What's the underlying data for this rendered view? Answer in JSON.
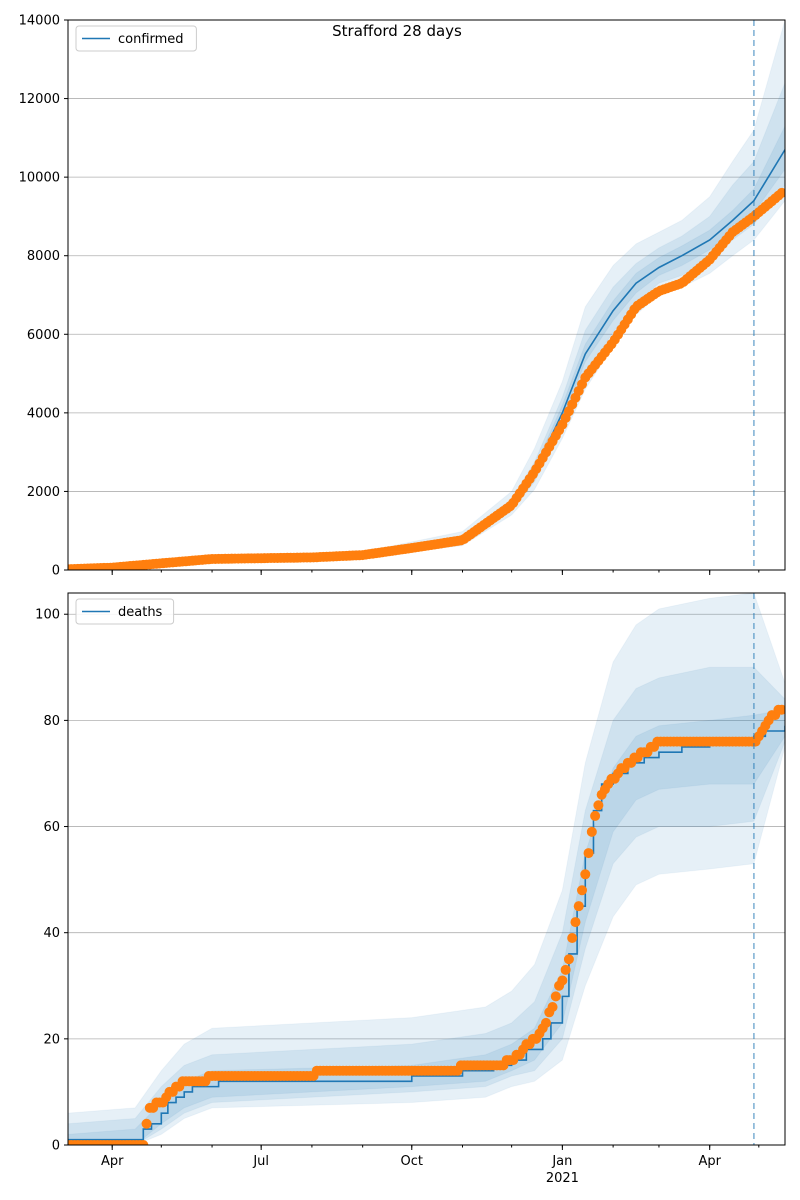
{
  "figure": {
    "title": "Strafford 28 days"
  },
  "colors": {
    "model_line": "#1f77b4",
    "observed_points": "#ff7f0e",
    "band": "#1f77b4",
    "grid": "#b0b0b0",
    "forecast_marker": "#1f77b4"
  },
  "x_axis": {
    "ticks": [
      {
        "date": "2020-04-01",
        "label": "Apr"
      },
      {
        "date": "2020-07-01",
        "label": "Jul"
      },
      {
        "date": "2020-10-01",
        "label": "Oct"
      },
      {
        "date": "2021-01-01",
        "label": "Jan",
        "sublabel": "2021"
      },
      {
        "date": "2021-04-01",
        "label": "Apr"
      }
    ],
    "xlim": [
      "2020-03-05",
      "2021-05-17"
    ],
    "forecast_start": "2021-04-28"
  },
  "chart_data": [
    {
      "type": "line",
      "panel": "top",
      "title": "Strafford 28 days",
      "legend": {
        "entries": [
          "confirmed"
        ],
        "placement": "top-left"
      },
      "ylim": [
        0,
        14000
      ],
      "yticks": [
        0,
        2000,
        4000,
        6000,
        8000,
        10000,
        12000,
        14000
      ],
      "grid": "horizontal",
      "series": [
        {
          "name": "confirmed",
          "style": "line",
          "x": [
            "2020-03-05",
            "2020-04-01",
            "2020-05-01",
            "2020-06-01",
            "2020-07-01",
            "2020-08-01",
            "2020-09-01",
            "2020-10-01",
            "2020-11-01",
            "2020-12-01",
            "2020-12-15",
            "2021-01-01",
            "2021-01-15",
            "2021-02-01",
            "2021-02-15",
            "2021-03-01",
            "2021-03-15",
            "2021-04-01",
            "2021-04-15",
            "2021-04-28",
            "2021-05-17"
          ],
          "y": [
            20,
            60,
            180,
            290,
            300,
            330,
            390,
            570,
            780,
            1650,
            2500,
            4000,
            5500,
            6600,
            7300,
            7700,
            8000,
            8400,
            8900,
            9400,
            10700
          ]
        },
        {
          "name": "observed",
          "style": "points",
          "x": [
            "2020-03-05",
            "2020-04-01",
            "2020-05-01",
            "2020-06-01",
            "2020-07-01",
            "2020-08-01",
            "2020-09-01",
            "2020-10-01",
            "2020-11-01",
            "2020-12-01",
            "2020-12-15",
            "2021-01-01",
            "2021-01-15",
            "2021-02-01",
            "2021-02-15",
            "2021-03-01",
            "2021-03-15",
            "2021-04-01",
            "2021-04-15",
            "2021-04-28",
            "2021-05-15"
          ],
          "y": [
            20,
            60,
            170,
            280,
            300,
            320,
            380,
            560,
            760,
            1650,
            2500,
            3700,
            4900,
            5800,
            6700,
            7100,
            7300,
            7900,
            8600,
            9000,
            9600
          ]
        }
      ],
      "bands": [
        {
          "x": [
            "2020-03-05",
            "2020-06-01",
            "2020-09-01",
            "2020-11-01",
            "2020-12-01",
            "2020-12-15",
            "2021-01-01",
            "2021-01-15",
            "2021-02-01",
            "2021-02-15",
            "2021-03-01",
            "2021-03-15",
            "2021-04-01",
            "2021-04-15",
            "2021-04-28",
            "2021-05-17"
          ],
          "lower": [
            0,
            230,
            330,
            620,
            1400,
            2050,
            3350,
            4600,
            5700,
            6500,
            7000,
            7200,
            7550,
            8000,
            8400,
            9400
          ],
          "upper": [
            60,
            360,
            460,
            980,
            2000,
            3100,
            4800,
            6700,
            7750,
            8300,
            8600,
            8900,
            9500,
            10400,
            11200,
            14000
          ]
        },
        {
          "x": [
            "2020-03-05",
            "2020-06-01",
            "2020-09-01",
            "2020-11-01",
            "2020-12-01",
            "2020-12-15",
            "2021-01-01",
            "2021-01-15",
            "2021-02-01",
            "2021-02-15",
            "2021-03-01",
            "2021-03-15",
            "2021-04-01",
            "2021-04-15",
            "2021-04-28",
            "2021-05-17"
          ],
          "lower": [
            5,
            250,
            350,
            680,
            1500,
            2250,
            3600,
            5000,
            6050,
            6800,
            7300,
            7500,
            7900,
            8400,
            8800,
            9800
          ],
          "upper": [
            40,
            320,
            420,
            880,
            1800,
            2750,
            4400,
            6100,
            7200,
            7800,
            8200,
            8500,
            9000,
            9800,
            10400,
            12400
          ]
        },
        {
          "x": [
            "2020-03-05",
            "2020-06-01",
            "2020-09-01",
            "2020-11-01",
            "2020-12-01",
            "2020-12-15",
            "2021-01-01",
            "2021-01-15",
            "2021-02-01",
            "2021-02-15",
            "2021-03-01",
            "2021-03-15",
            "2021-04-01",
            "2021-04-15",
            "2021-04-28",
            "2021-05-17"
          ],
          "lower": [
            10,
            270,
            370,
            720,
            1580,
            2400,
            3800,
            5300,
            6350,
            7050,
            7500,
            7750,
            8150,
            8650,
            9100,
            10200
          ],
          "upper": [
            30,
            300,
            400,
            830,
            1720,
            2600,
            4200,
            5750,
            6850,
            7550,
            7950,
            8250,
            8650,
            9150,
            9700,
            11300
          ]
        }
      ]
    },
    {
      "type": "line",
      "panel": "bottom",
      "legend": {
        "entries": [
          "deaths"
        ],
        "placement": "top-left"
      },
      "ylim": [
        0,
        104
      ],
      "yticks": [
        0,
        20,
        40,
        60,
        80,
        100
      ],
      "grid": "horizontal",
      "series": [
        {
          "name": "deaths",
          "style": "step",
          "x": [
            "2020-03-05",
            "2020-04-15",
            "2020-04-20",
            "2020-04-25",
            "2020-05-01",
            "2020-05-05",
            "2020-05-10",
            "2020-05-15",
            "2020-05-20",
            "2020-05-28",
            "2020-06-05",
            "2020-06-15",
            "2020-10-01",
            "2020-11-01",
            "2020-11-20",
            "2020-12-01",
            "2020-12-10",
            "2020-12-20",
            "2020-12-25",
            "2021-01-01",
            "2021-01-05",
            "2021-01-10",
            "2021-01-15",
            "2021-01-20",
            "2021-01-25",
            "2021-02-01",
            "2021-02-10",
            "2021-02-20",
            "2021-03-01",
            "2021-03-15",
            "2021-04-01",
            "2021-04-28",
            "2021-05-05",
            "2021-05-12",
            "2021-05-17"
          ],
          "y": [
            1,
            1,
            3,
            4,
            6,
            8,
            9,
            10,
            11,
            11,
            12,
            12,
            13,
            14,
            15,
            16,
            18,
            20,
            23,
            28,
            36,
            45,
            55,
            63,
            68,
            70,
            72,
            73,
            74,
            75,
            76,
            77,
            78,
            78,
            79
          ]
        },
        {
          "name": "observed deaths",
          "style": "points",
          "x": [
            "2020-03-05",
            "2020-04-01",
            "2020-04-20",
            "2020-04-24",
            "2020-05-01",
            "2020-05-10",
            "2020-05-15",
            "2020-05-25",
            "2020-06-01",
            "2020-10-05",
            "2020-11-25",
            "2020-12-05",
            "2020-12-15",
            "2020-12-22",
            "2020-12-28",
            "2021-01-01",
            "2021-01-05",
            "2021-01-10",
            "2021-01-15",
            "2021-01-20",
            "2021-01-25",
            "2021-02-01",
            "2021-02-10",
            "2021-02-20",
            "2021-03-01",
            "2021-04-28",
            "2021-05-05",
            "2021-05-10",
            "2021-05-15"
          ],
          "y": [
            0,
            0,
            0,
            7,
            8,
            11,
            12,
            12,
            13,
            14,
            15,
            17,
            20,
            23,
            28,
            31,
            35,
            44,
            51,
            61,
            66,
            69,
            72,
            74,
            76,
            76,
            79,
            81,
            82
          ]
        }
      ],
      "bands": [
        {
          "x": [
            "2020-03-05",
            "2020-04-15",
            "2020-05-01",
            "2020-05-15",
            "2020-06-01",
            "2020-10-01",
            "2020-11-15",
            "2020-12-01",
            "2020-12-15",
            "2021-01-01",
            "2021-01-15",
            "2021-02-01",
            "2021-02-15",
            "2021-03-01",
            "2021-04-01",
            "2021-04-28",
            "2021-05-17"
          ],
          "lower": [
            0,
            0,
            2,
            5,
            7,
            8,
            9,
            11,
            12,
            16,
            30,
            43,
            49,
            51,
            52,
            53,
            75
          ],
          "upper": [
            6,
            7,
            14,
            19,
            22,
            24,
            26,
            29,
            34,
            48,
            72,
            91,
            98,
            101,
            103,
            104,
            87
          ]
        },
        {
          "x": [
            "2020-03-05",
            "2020-04-15",
            "2020-05-01",
            "2020-05-15",
            "2020-06-01",
            "2020-10-01",
            "2020-11-15",
            "2020-12-01",
            "2020-12-15",
            "2021-01-01",
            "2021-01-15",
            "2021-02-01",
            "2021-02-15",
            "2021-03-01",
            "2021-04-01",
            "2021-04-28",
            "2021-05-17"
          ],
          "lower": [
            0,
            0,
            3,
            6,
            8,
            10,
            11,
            13,
            14,
            20,
            37,
            53,
            58,
            60,
            60,
            61,
            76
          ],
          "upper": [
            4,
            5,
            11,
            15,
            17,
            19,
            21,
            23,
            27,
            40,
            63,
            80,
            86,
            88,
            90,
            90,
            84
          ]
        },
        {
          "x": [
            "2020-03-05",
            "2020-04-15",
            "2020-05-01",
            "2020-05-15",
            "2020-06-01",
            "2020-10-01",
            "2020-11-15",
            "2020-12-01",
            "2020-12-15",
            "2021-01-01",
            "2021-01-15",
            "2021-02-01",
            "2021-02-15",
            "2021-03-01",
            "2021-04-01",
            "2021-04-28",
            "2021-05-17"
          ],
          "lower": [
            0,
            0,
            4,
            7,
            9,
            11,
            12,
            14,
            16,
            23,
            42,
            59,
            65,
            67,
            68,
            68,
            77
          ],
          "upper": [
            2,
            3,
            8,
            12,
            14,
            15,
            17,
            19,
            22,
            33,
            55,
            71,
            77,
            79,
            80,
            81,
            82
          ]
        }
      ]
    }
  ]
}
